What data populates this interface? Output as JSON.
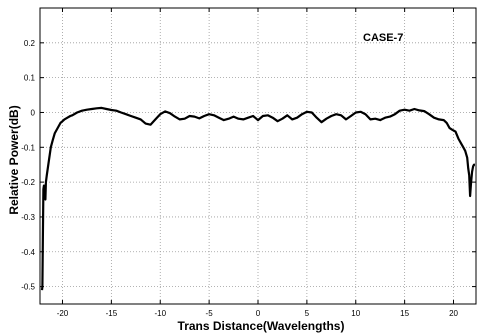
{
  "chart_data": {
    "type": "line",
    "title": "",
    "xlabel": "Trans Distance(Wavelengths)",
    "ylabel": "Relative Power(dB)",
    "annotation": "CASE-7",
    "xlim": [
      -22.3,
      22.3
    ],
    "ylim": [
      -0.55,
      0.3
    ],
    "xticks": [
      -20,
      -15,
      -10,
      -5,
      0,
      5,
      10,
      15,
      20
    ],
    "yticks": [
      -0.5,
      -0.4,
      -0.3,
      -0.2,
      -0.1,
      0,
      0.1,
      0.2
    ],
    "xtick_labels": [
      "-20",
      "-15",
      "-10",
      "-5",
      "0",
      "5",
      "10",
      "15",
      "20"
    ],
    "ytick_labels": [
      "-0.5",
      "-0.4",
      "-0.3",
      "-0.2",
      "-0.1",
      "0",
      "0.1",
      "0.2"
    ],
    "grid": true,
    "line_color": "#000000",
    "series": [
      {
        "x": [
          -22.1,
          -22.05,
          -22.0,
          -21.95,
          -21.9,
          -21.85,
          -21.8,
          -21.75,
          -21.7,
          -21.6,
          -21.5,
          -21.4,
          -21.3,
          -21.2,
          -21.0,
          -20.8,
          -20.5,
          -20.2,
          -20.0,
          -19.8,
          -19.5,
          -19.2,
          -19.0,
          -18.5,
          -18.0,
          -17.5,
          -17.0,
          -16.5,
          -16.0,
          -15.5,
          -15.0,
          -14.5,
          -14.0,
          -13.5,
          -13.0,
          -12.5,
          -12.0,
          -11.5,
          -11.0,
          -10.5,
          -10.0,
          -9.5,
          -9.0,
          -8.5,
          -8.0,
          -7.5,
          -7.0,
          -6.5,
          -6.0,
          -5.5,
          -5.0,
          -4.5,
          -4.0,
          -3.5,
          -3.0,
          -2.5,
          -2.0,
          -1.5,
          -1.0,
          -0.5,
          0.0,
          0.5,
          1.0,
          1.5,
          2.0,
          2.5,
          3.0,
          3.5,
          4.0,
          4.5,
          5.0,
          5.5,
          6.0,
          6.5,
          7.0,
          7.5,
          8.0,
          8.5,
          9.0,
          9.5,
          10.0,
          10.5,
          11.0,
          11.5,
          12.0,
          12.5,
          13.0,
          13.5,
          14.0,
          14.5,
          15.0,
          15.5,
          16.0,
          16.5,
          17.0,
          17.5,
          18.0,
          18.5,
          19.0,
          19.3,
          19.6,
          19.9,
          20.2,
          20.5,
          20.8,
          21.0,
          21.2,
          21.4,
          21.5,
          21.6,
          21.7,
          21.8,
          21.9,
          22.0,
          22.1,
          22.2
        ],
        "y": [
          -0.51,
          -0.5,
          -0.35,
          -0.22,
          -0.21,
          -0.24,
          -0.21,
          -0.25,
          -0.2,
          -0.18,
          -0.16,
          -0.14,
          -0.12,
          -0.1,
          -0.08,
          -0.06,
          -0.045,
          -0.03,
          -0.025,
          -0.02,
          -0.015,
          -0.01,
          -0.008,
          0.0,
          0.005,
          0.008,
          0.01,
          0.012,
          0.013,
          0.01,
          0.007,
          0.005,
          0.0,
          -0.005,
          -0.01,
          -0.015,
          -0.02,
          -0.032,
          -0.035,
          -0.02,
          -0.005,
          0.003,
          -0.002,
          -0.012,
          -0.02,
          -0.018,
          -0.01,
          -0.012,
          -0.017,
          -0.01,
          -0.005,
          -0.008,
          -0.015,
          -0.022,
          -0.018,
          -0.012,
          -0.018,
          -0.02,
          -0.015,
          -0.01,
          -0.022,
          -0.01,
          -0.008,
          -0.015,
          -0.025,
          -0.018,
          -0.008,
          -0.02,
          -0.015,
          -0.005,
          0.002,
          0.0,
          -0.015,
          -0.028,
          -0.018,
          -0.01,
          -0.005,
          -0.008,
          -0.02,
          -0.01,
          0.0,
          0.002,
          -0.005,
          -0.02,
          -0.018,
          -0.022,
          -0.015,
          -0.012,
          -0.005,
          0.005,
          0.008,
          0.005,
          0.01,
          0.006,
          0.004,
          -0.005,
          -0.015,
          -0.02,
          -0.022,
          -0.03,
          -0.045,
          -0.05,
          -0.055,
          -0.075,
          -0.09,
          -0.1,
          -0.11,
          -0.13,
          -0.16,
          -0.18,
          -0.24,
          -0.2,
          -0.17,
          -0.155,
          -0.15,
          -0.15
        ]
      }
    ]
  }
}
